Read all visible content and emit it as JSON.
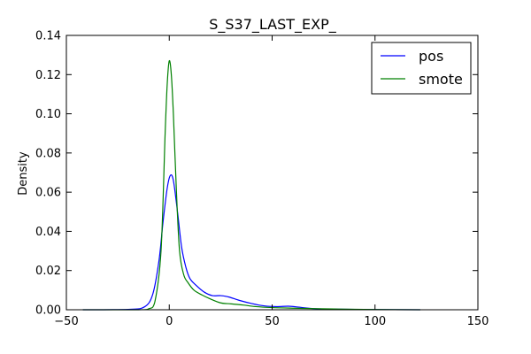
{
  "chart_data": {
    "type": "line",
    "title": "S_S37_LAST_EXP_",
    "xlabel": "",
    "ylabel": "Density",
    "xlim": [
      -50,
      150
    ],
    "ylim": [
      0,
      0.14
    ],
    "x_ticks": [
      -50,
      0,
      50,
      100,
      150
    ],
    "x_tick_labels": [
      "−50",
      "0",
      "50",
      "100",
      "150"
    ],
    "y_ticks": [
      0,
      0.02,
      0.04,
      0.06,
      0.08,
      0.1,
      0.12,
      0.14
    ],
    "y_tick_labels": [
      "0.00",
      "0.02",
      "0.04",
      "0.06",
      "0.08",
      "0.10",
      "0.12",
      "0.14"
    ],
    "grid": false,
    "legend_position": "top-right",
    "series": [
      {
        "name": "pos",
        "color": "#0000ff",
        "points": [
          [
            -42,
            0
          ],
          [
            -20,
            0.0002
          ],
          [
            -12,
            0.0015
          ],
          [
            -8,
            0.008
          ],
          [
            -5,
            0.025
          ],
          [
            -3,
            0.045
          ],
          [
            -1,
            0.062
          ],
          [
            0.5,
            0.0685
          ],
          [
            2,
            0.066
          ],
          [
            4,
            0.05
          ],
          [
            6,
            0.032
          ],
          [
            8,
            0.022
          ],
          [
            10,
            0.016
          ],
          [
            13,
            0.0125
          ],
          [
            17,
            0.009
          ],
          [
            21,
            0.0072
          ],
          [
            25,
            0.0072
          ],
          [
            29,
            0.0065
          ],
          [
            34,
            0.0048
          ],
          [
            40,
            0.0032
          ],
          [
            46,
            0.002
          ],
          [
            52,
            0.0016
          ],
          [
            58,
            0.0018
          ],
          [
            64,
            0.0012
          ],
          [
            70,
            0.0006
          ],
          [
            80,
            0.0003
          ],
          [
            100,
            0.0001
          ],
          [
            122,
            0
          ]
        ]
      },
      {
        "name": "smote",
        "color": "#008000",
        "points": [
          [
            -42,
            0
          ],
          [
            -15,
            0
          ],
          [
            -10,
            0.0005
          ],
          [
            -7,
            0.004
          ],
          [
            -4,
            0.03
          ],
          [
            -2,
            0.09
          ],
          [
            -1,
            0.115
          ],
          [
            0,
            0.127
          ],
          [
            1,
            0.12
          ],
          [
            2,
            0.1
          ],
          [
            3.5,
            0.06
          ],
          [
            5,
            0.03
          ],
          [
            7,
            0.018
          ],
          [
            9,
            0.014
          ],
          [
            12,
            0.01
          ],
          [
            16,
            0.0075
          ],
          [
            20,
            0.0055
          ],
          [
            25,
            0.0035
          ],
          [
            30,
            0.003
          ],
          [
            36,
            0.0024
          ],
          [
            42,
            0.0016
          ],
          [
            50,
            0.0011
          ],
          [
            60,
            0.0008
          ],
          [
            70,
            0.0006
          ],
          [
            80,
            0.0004
          ],
          [
            100,
            0.0001
          ],
          [
            122,
            0
          ]
        ]
      }
    ]
  }
}
